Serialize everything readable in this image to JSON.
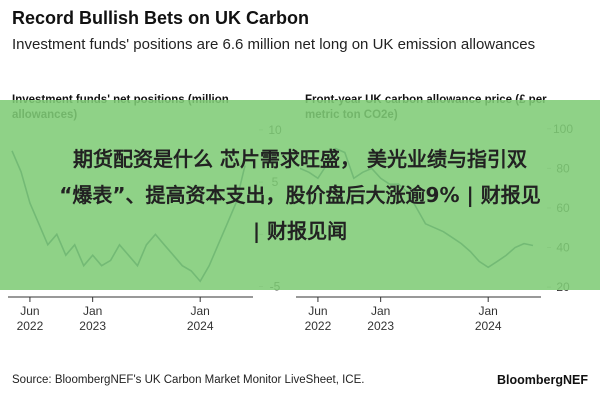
{
  "header": {
    "title": "Record Bullish Bets on UK Carbon",
    "subtitle": "Investment funds' positions are 6.6 million net long on UK emission allowances"
  },
  "chart_data": [
    {
      "type": "line",
      "title": "Investment funds' net positions (million allowances)",
      "x": [
        "2022-04",
        "2022-05",
        "2022-06",
        "2022-07",
        "2022-08",
        "2022-09",
        "2022-10",
        "2022-11",
        "2022-12",
        "2023-01",
        "2023-02",
        "2023-03",
        "2023-04",
        "2023-05",
        "2023-06",
        "2023-07",
        "2023-08",
        "2023-09",
        "2023-10",
        "2023-11",
        "2023-12",
        "2024-01",
        "2024-02",
        "2024-03",
        "2024-04",
        "2024-05",
        "2024-06"
      ],
      "series": [
        {
          "color": "#1f3a6e",
          "values": [
            8,
            6,
            3,
            1,
            -1,
            0,
            -2,
            -1,
            -3,
            -2,
            -3,
            -2.5,
            -1,
            -2,
            -3,
            -1,
            0,
            -1,
            -2,
            -3,
            -3.5,
            -4.5,
            -3,
            -1,
            1,
            3,
            6.6
          ]
        }
      ],
      "xlim": [
        "2022-04",
        "2024-06"
      ],
      "xticks": [
        {
          "value": "2022-06",
          "label": "Jun 2022"
        },
        {
          "value": "2023-01",
          "label": "Jan 2023"
        },
        {
          "value": "2024-01",
          "label": "Jan 2024"
        }
      ],
      "ylim": [
        -6,
        12
      ],
      "yticks": [
        10,
        5,
        0,
        -5
      ],
      "grid": false
    },
    {
      "type": "line",
      "title": "Front-year UK carbon allowance price (£ per metric ton CO2e)",
      "x": [
        "2022-04",
        "2022-05",
        "2022-06",
        "2022-07",
        "2022-08",
        "2022-09",
        "2022-10",
        "2022-11",
        "2022-12",
        "2023-01",
        "2023-02",
        "2023-03",
        "2023-04",
        "2023-05",
        "2023-06",
        "2023-07",
        "2023-08",
        "2023-09",
        "2023-10",
        "2023-11",
        "2023-12",
        "2024-01",
        "2024-02",
        "2024-03",
        "2024-04",
        "2024-05",
        "2024-06"
      ],
      "series": [
        {
          "color": "#1f3a6e",
          "values": [
            80,
            78,
            75,
            82,
            90,
            88,
            75,
            78,
            80,
            75,
            72,
            72,
            68,
            60,
            52,
            50,
            48,
            45,
            42,
            38,
            33,
            30,
            33,
            36,
            40,
            42,
            41
          ]
        }
      ],
      "xlim": [
        "2022-04",
        "2024-06"
      ],
      "xticks": [
        {
          "value": "2022-06",
          "label": "Jun 2022"
        },
        {
          "value": "2023-01",
          "label": "Jan 2023"
        },
        {
          "value": "2024-01",
          "label": "Jan 2024"
        }
      ],
      "ylim": [
        15,
        110
      ],
      "yticks": [
        100,
        80,
        60,
        40,
        20
      ],
      "grid": false
    }
  ],
  "banner": {
    "lines": [
      "期货配资是什么 芯片需求旺盛， 美光业绩与指引双",
      "“爆表”、提高资本支出，股价盘后大涨逾9% | 财报见",
      "| 财报见闻"
    ]
  },
  "footer": {
    "source": "Source: BloombergNEF's UK Carbon Market Monitor LiveSheet, ICE.",
    "brand": "BloombergNEF"
  }
}
